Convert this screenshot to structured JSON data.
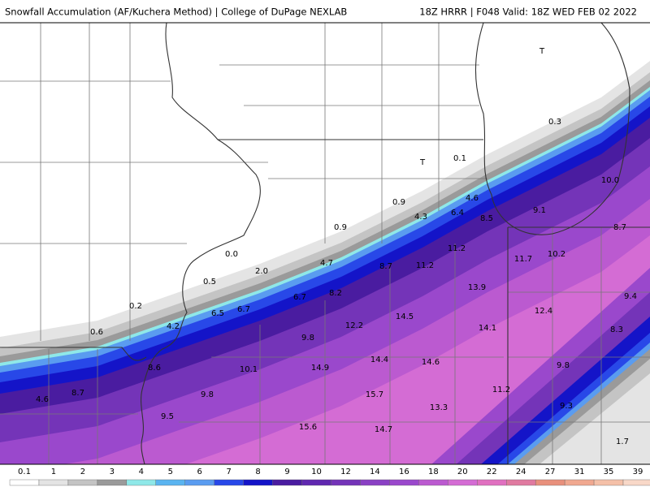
{
  "header": {
    "left": "Snowfall Accumulation (AF/Kuchera Method) | College of DuPage NEXLAB",
    "right": "18Z HRRR | F048 Valid: 18Z WED FEB 02 2022"
  },
  "labels": [
    "T",
    "0.3",
    "T",
    "0.1",
    "4.6",
    "10.0",
    "0.9",
    "4.3",
    "6.4",
    "8.5",
    "9.1",
    "8.7",
    "0.9",
    "0.0",
    "4.7",
    "8.7",
    "11.2",
    "11.2",
    "11.7",
    "10.2",
    "2.0",
    "0.5",
    "8.2",
    "6.7",
    "13.9",
    "9.4",
    "0.2",
    "6.5",
    "6.7",
    "12.4",
    "14.5",
    "0.6",
    "4.2",
    "12.2",
    "14.1",
    "8.3",
    "9.8",
    "14.4",
    "14.6",
    "8.6",
    "10.1",
    "14.9",
    "9.8",
    "4.6",
    "8.7",
    "9.8",
    "15.7",
    "11.2",
    "13.3",
    "9.3",
    "9.5",
    "15.6",
    "14.7",
    "1.7"
  ],
  "colorbar": [
    "0.1",
    "1",
    "2",
    "3",
    "4",
    "5",
    "6",
    "7",
    "8",
    "9",
    "10",
    "12",
    "14",
    "16",
    "18",
    "20",
    "22",
    "24",
    "27",
    "31",
    "35",
    "39"
  ]
}
